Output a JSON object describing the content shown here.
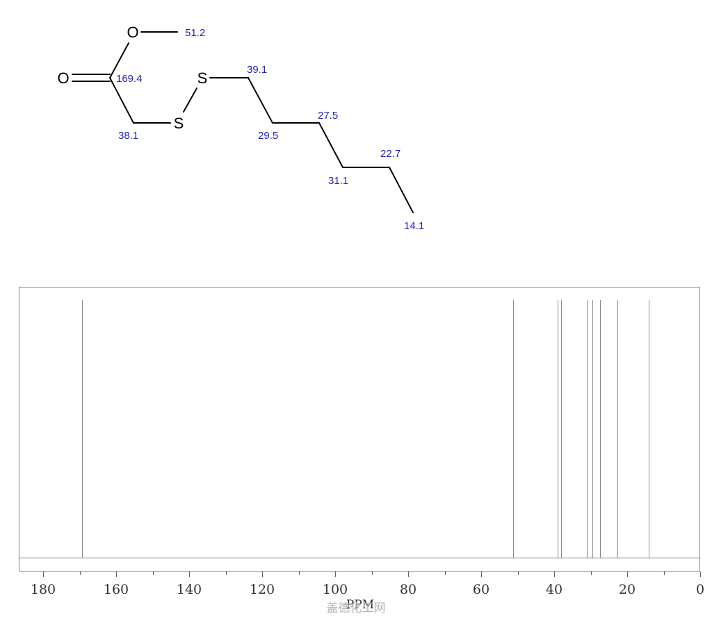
{
  "molecule": {
    "atoms": [
      "O",
      "O",
      "S",
      "S"
    ],
    "shift_labels": [
      "51.2",
      "169.4",
      "39.1",
      "38.1",
      "29.5",
      "27.5",
      "31.1",
      "22.7",
      "14.1"
    ]
  },
  "watermark": "盖德化工网",
  "colors": {
    "shift_label": "#2323b4",
    "bond": "#000000",
    "peak": "#888888",
    "frame": "#888888",
    "text": "#333333"
  },
  "chart_data": {
    "type": "nmr_spectrum",
    "xlabel": "PPM",
    "xlim": [
      0,
      185
    ],
    "x_reversed": true,
    "x_ticks": [
      180,
      160,
      140,
      120,
      100,
      80,
      60,
      40,
      20,
      0
    ],
    "peaks": [
      169.4,
      51.2,
      39.1,
      38.1,
      31.1,
      29.5,
      27.5,
      22.7,
      14.1
    ]
  }
}
